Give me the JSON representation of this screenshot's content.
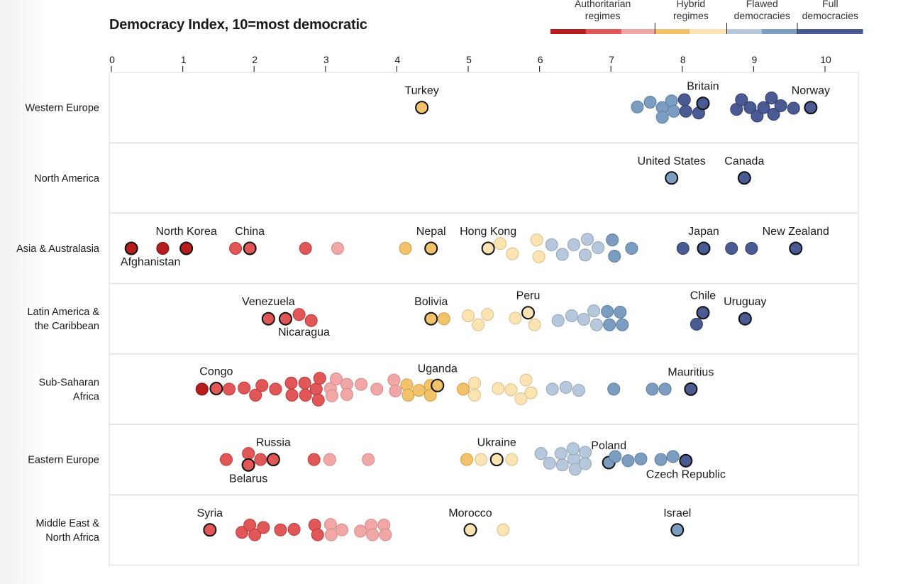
{
  "chart_data": {
    "type": "scatter",
    "title": "Democracy Index, 10=most democratic",
    "xlim": [
      0,
      10.5
    ],
    "x_ticks": [
      0,
      1,
      2,
      3,
      4,
      5,
      6,
      7,
      8,
      9,
      10
    ],
    "legend": {
      "placement": "top-right",
      "categories": [
        {
          "label": "Authoritarian regimes",
          "range": [
            0,
            4
          ],
          "colors": [
            "#b71c1c",
            "#e15656",
            "#f2a7a7"
          ]
        },
        {
          "label": "Hybrid regimes",
          "range": [
            4,
            6
          ],
          "colors": [
            "#f2c36b",
            "#fbe3b2"
          ]
        },
        {
          "label": "Flawed democracies",
          "range": [
            6,
            8
          ],
          "colors": [
            "#b7c8dc",
            "#7b9dc0"
          ]
        },
        {
          "label": "Full democracies",
          "range": [
            8,
            10.5
          ],
          "colors": [
            "#4a5a92"
          ]
        }
      ]
    },
    "regions": [
      {
        "name": "Western Europe",
        "points": [
          {
            "x": 4.35,
            "dy": 0,
            "label": "Turkey",
            "highlight": true
          },
          {
            "x": 7.37,
            "dy": -0.1
          },
          {
            "x": 7.55,
            "dy": -0.9
          },
          {
            "x": 7.72,
            "dy": 0
          },
          {
            "x": 7.72,
            "dy": 1.6
          },
          {
            "x": 7.85,
            "dy": -1.1
          },
          {
            "x": 7.88,
            "dy": 0.6
          },
          {
            "x": 8.03,
            "dy": -1.3
          },
          {
            "x": 8.05,
            "dy": 0.6
          },
          {
            "x": 8.23,
            "dy": 0.9
          },
          {
            "x": 8.29,
            "dy": -0.7,
            "label": "Britain",
            "highlight": true
          },
          {
            "x": 8.76,
            "dy": 0.3
          },
          {
            "x": 8.83,
            "dy": -1.3
          },
          {
            "x": 8.95,
            "dy": 0
          },
          {
            "x": 9.05,
            "dy": 1.4
          },
          {
            "x": 9.14,
            "dy": 0
          },
          {
            "x": 9.25,
            "dy": -1.6
          },
          {
            "x": 9.28,
            "dy": 1.1
          },
          {
            "x": 9.38,
            "dy": -0.3
          },
          {
            "x": 9.56,
            "dy": 0.1
          },
          {
            "x": 9.8,
            "dy": 0,
            "label": "Norway",
            "highlight": true
          }
        ]
      },
      {
        "name": "North America",
        "points": [
          {
            "x": 7.85,
            "dy": 0,
            "label": "United States",
            "highlight": true
          },
          {
            "x": 8.87,
            "dy": 0,
            "label": "Canada",
            "highlight": true
          }
        ]
      },
      {
        "name": "Asia & Australasia",
        "points": [
          {
            "x": 0.28,
            "dy": 0,
            "label": "Afghanistan",
            "highlight": true
          },
          {
            "x": 0.72,
            "dy": 0
          },
          {
            "x": 1.05,
            "dy": 0,
            "label": "North Korea",
            "highlight": true
          },
          {
            "x": 1.74,
            "dy": 0
          },
          {
            "x": 1.94,
            "dy": 0,
            "label": "China",
            "highlight": true
          },
          {
            "x": 2.72,
            "dy": 0
          },
          {
            "x": 3.17,
            "dy": 0
          },
          {
            "x": 4.12,
            "dy": 0
          },
          {
            "x": 4.48,
            "dy": 0,
            "label": "Nepal",
            "highlight": true
          },
          {
            "x": 5.28,
            "dy": 0,
            "label": "Hong Kong",
            "highlight": true
          },
          {
            "x": 5.45,
            "dy": -0.8
          },
          {
            "x": 5.62,
            "dy": 0.9
          },
          {
            "x": 5.96,
            "dy": -1.4
          },
          {
            "x": 5.99,
            "dy": 1.4
          },
          {
            "x": 6.17,
            "dy": -0.6
          },
          {
            "x": 6.32,
            "dy": 1.0
          },
          {
            "x": 6.48,
            "dy": -0.6
          },
          {
            "x": 6.64,
            "dy": 1.1
          },
          {
            "x": 6.67,
            "dy": -1.5
          },
          {
            "x": 6.82,
            "dy": -0.1
          },
          {
            "x": 7.02,
            "dy": -1.4
          },
          {
            "x": 7.05,
            "dy": 1.3
          },
          {
            "x": 7.29,
            "dy": 0
          },
          {
            "x": 8.01,
            "dy": 0
          },
          {
            "x": 8.3,
            "dy": 0,
            "label": "Japan",
            "highlight": true
          },
          {
            "x": 8.69,
            "dy": 0
          },
          {
            "x": 8.97,
            "dy": 0
          },
          {
            "x": 9.59,
            "dy": 0,
            "label": "New Zealand",
            "highlight": true
          }
        ]
      },
      {
        "name": "Latin America & the Caribbean",
        "points": [
          {
            "x": 2.2,
            "dy": 0,
            "label": "Venezuela",
            "highlight": true
          },
          {
            "x": 2.44,
            "dy": 0,
            "label": "Nicaragua",
            "highlight": true
          },
          {
            "x": 2.63,
            "dy": -0.7
          },
          {
            "x": 2.8,
            "dy": 0.3
          },
          {
            "x": 4.48,
            "dy": 0,
            "label": "Bolivia",
            "highlight": true
          },
          {
            "x": 4.66,
            "dy": 0
          },
          {
            "x": 5.0,
            "dy": -0.5
          },
          {
            "x": 5.14,
            "dy": 1.0
          },
          {
            "x": 5.27,
            "dy": -0.7
          },
          {
            "x": 5.66,
            "dy": -0.1
          },
          {
            "x": 5.84,
            "dy": -1.0,
            "label": "Peru",
            "highlight": true
          },
          {
            "x": 5.93,
            "dy": 1.0
          },
          {
            "x": 6.26,
            "dy": 0.3
          },
          {
            "x": 6.45,
            "dy": -0.5
          },
          {
            "x": 6.62,
            "dy": 0.1
          },
          {
            "x": 6.76,
            "dy": -1.3
          },
          {
            "x": 6.8,
            "dy": 1.0
          },
          {
            "x": 6.95,
            "dy": -1.2
          },
          {
            "x": 6.98,
            "dy": 1.0
          },
          {
            "x": 7.13,
            "dy": -1.1
          },
          {
            "x": 7.16,
            "dy": 1.0
          },
          {
            "x": 8.2,
            "dy": 0.9
          },
          {
            "x": 8.29,
            "dy": -1.0,
            "label": "Chile",
            "highlight": true
          },
          {
            "x": 8.88,
            "dy": 0,
            "label": "Uruguay",
            "highlight": true
          }
        ]
      },
      {
        "name": "Sub-Saharan Africa",
        "points": [
          {
            "x": 1.27,
            "dy": 0
          },
          {
            "x": 1.47,
            "dy": -0.1,
            "label": "Congo",
            "highlight": true
          },
          {
            "x": 1.65,
            "dy": 0
          },
          {
            "x": 1.86,
            "dy": -0.2
          },
          {
            "x": 2.02,
            "dy": 1.0
          },
          {
            "x": 2.11,
            "dy": -0.6
          },
          {
            "x": 2.3,
            "dy": 0
          },
          {
            "x": 2.52,
            "dy": -1.0
          },
          {
            "x": 2.53,
            "dy": 1.0
          },
          {
            "x": 2.71,
            "dy": -1.0
          },
          {
            "x": 2.72,
            "dy": 1.0
          },
          {
            "x": 2.87,
            "dy": 0
          },
          {
            "x": 2.92,
            "dy": -1.8
          },
          {
            "x": 2.9,
            "dy": 1.8
          },
          {
            "x": 3.07,
            "dy": -0.1
          },
          {
            "x": 3.09,
            "dy": 1.1
          },
          {
            "x": 3.15,
            "dy": -1.7
          },
          {
            "x": 3.3,
            "dy": -0.8
          },
          {
            "x": 3.3,
            "dy": 0.9
          },
          {
            "x": 3.5,
            "dy": -0.8
          },
          {
            "x": 3.72,
            "dy": 0
          },
          {
            "x": 3.96,
            "dy": -1.5
          },
          {
            "x": 3.98,
            "dy": 0.3
          },
          {
            "x": 4.14,
            "dy": -0.7
          },
          {
            "x": 4.16,
            "dy": 1.0
          },
          {
            "x": 4.31,
            "dy": 0.2
          },
          {
            "x": 4.47,
            "dy": -0.6
          },
          {
            "x": 4.47,
            "dy": 1.0
          },
          {
            "x": 4.57,
            "dy": -0.6,
            "label": "Uganda",
            "highlight": true
          },
          {
            "x": 4.93,
            "dy": 0
          },
          {
            "x": 5.09,
            "dy": -1.0
          },
          {
            "x": 5.09,
            "dy": 1.0
          },
          {
            "x": 5.42,
            "dy": -0.1
          },
          {
            "x": 5.6,
            "dy": 0.1
          },
          {
            "x": 5.74,
            "dy": 1.6
          },
          {
            "x": 5.81,
            "dy": -1.5
          },
          {
            "x": 5.88,
            "dy": 0.6
          },
          {
            "x": 6.18,
            "dy": 0
          },
          {
            "x": 6.37,
            "dy": -0.3
          },
          {
            "x": 6.55,
            "dy": 0.2
          },
          {
            "x": 7.04,
            "dy": 0
          },
          {
            "x": 7.58,
            "dy": 0
          },
          {
            "x": 7.76,
            "dy": 0
          },
          {
            "x": 8.12,
            "dy": 0,
            "label": "Mauritius",
            "highlight": true
          }
        ]
      },
      {
        "name": "Eastern Europe",
        "points": [
          {
            "x": 1.61,
            "dy": 0
          },
          {
            "x": 1.92,
            "dy": -1.0
          },
          {
            "x": 1.92,
            "dy": 0.9,
            "label": "Belarus",
            "highlight": true
          },
          {
            "x": 2.09,
            "dy": 0
          },
          {
            "x": 2.27,
            "dy": 0,
            "label": "Russia",
            "highlight": true
          },
          {
            "x": 2.84,
            "dy": 0
          },
          {
            "x": 3.06,
            "dy": 0
          },
          {
            "x": 3.6,
            "dy": 0
          },
          {
            "x": 4.98,
            "dy": 0
          },
          {
            "x": 5.18,
            "dy": 0
          },
          {
            "x": 5.4,
            "dy": 0,
            "label": "Ukraine",
            "highlight": true
          },
          {
            "x": 5.61,
            "dy": 0
          },
          {
            "x": 6.02,
            "dy": -1.0
          },
          {
            "x": 6.14,
            "dy": 0.6
          },
          {
            "x": 6.3,
            "dy": -1.0
          },
          {
            "x": 6.32,
            "dy": 0.9
          },
          {
            "x": 6.48,
            "dy": -0.1
          },
          {
            "x": 6.47,
            "dy": -1.8
          },
          {
            "x": 6.5,
            "dy": 1.6
          },
          {
            "x": 6.64,
            "dy": -1.2
          },
          {
            "x": 6.64,
            "dy": 0.7
          },
          {
            "x": 6.97,
            "dy": 0.5,
            "label": "Poland",
            "highlight": true
          },
          {
            "x": 7.06,
            "dy": -0.5
          },
          {
            "x": 7.24,
            "dy": 0.2
          },
          {
            "x": 7.42,
            "dy": -0.1
          },
          {
            "x": 7.7,
            "dy": 0
          },
          {
            "x": 7.87,
            "dy": -0.5
          },
          {
            "x": 8.05,
            "dy": 0.2,
            "label": "Czech Republic",
            "highlight": true
          }
        ]
      },
      {
        "name": "Middle East & North Africa",
        "points": [
          {
            "x": 1.38,
            "dy": 0,
            "label": "Syria",
            "highlight": true
          },
          {
            "x": 1.83,
            "dy": 0.4
          },
          {
            "x": 1.94,
            "dy": -0.8
          },
          {
            "x": 2.01,
            "dy": 0.8
          },
          {
            "x": 2.13,
            "dy": -0.4
          },
          {
            "x": 2.37,
            "dy": 0
          },
          {
            "x": 2.56,
            "dy": -0.1
          },
          {
            "x": 2.85,
            "dy": -0.8
          },
          {
            "x": 2.89,
            "dy": 0.8
          },
          {
            "x": 3.07,
            "dy": -0.9
          },
          {
            "x": 3.08,
            "dy": 0.8
          },
          {
            "x": 3.23,
            "dy": 0
          },
          {
            "x": 3.49,
            "dy": 0.2
          },
          {
            "x": 3.64,
            "dy": -0.8
          },
          {
            "x": 3.66,
            "dy": 0.8
          },
          {
            "x": 3.82,
            "dy": -0.8
          },
          {
            "x": 3.84,
            "dy": 0.8
          },
          {
            "x": 5.03,
            "dy": 0,
            "label": "Morocco",
            "highlight": true
          },
          {
            "x": 5.49,
            "dy": 0
          },
          {
            "x": 7.93,
            "dy": 0,
            "label": "Israel",
            "highlight": true
          }
        ]
      }
    ]
  }
}
